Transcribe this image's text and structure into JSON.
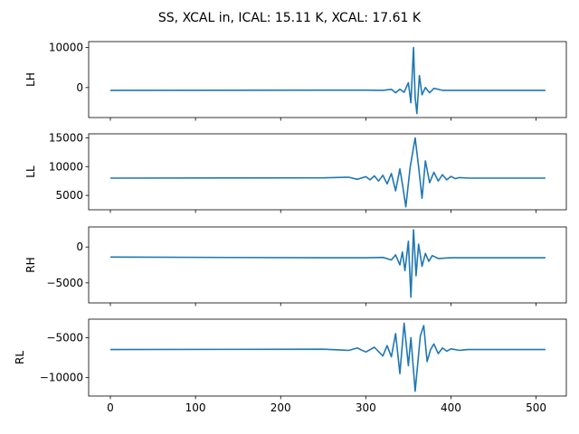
{
  "figure": {
    "title": "SS, XCAL in, ICAL: 15.11 K, XCAL: 17.61 K",
    "line_color": "#1f77b4"
  },
  "chart_data": [
    {
      "type": "line",
      "ylabel": "LH",
      "xlim": [
        -25.5,
        535.5
      ],
      "ylim": [
        -7500,
        11500
      ],
      "yticks": [
        0,
        10000
      ],
      "ytick_labels": [
        "0",
        "10000"
      ],
      "xticks": [
        0,
        100,
        200,
        300,
        400,
        500
      ],
      "xtick_labels": [],
      "baseline": -700,
      "x": [
        0,
        250,
        300,
        320,
        330,
        335,
        340,
        345,
        350,
        353,
        356,
        358,
        360,
        363,
        366,
        370,
        375,
        380,
        390,
        400,
        420,
        511
      ],
      "y": [
        -700,
        -650,
        -650,
        -700,
        -450,
        -1300,
        -400,
        -1200,
        1200,
        -3800,
        10000,
        -2500,
        -6500,
        3000,
        -1800,
        0,
        -1300,
        -200,
        -700,
        -700,
        -700,
        -700
      ]
    },
    {
      "type": "line",
      "ylabel": "LL",
      "xlim": [
        -25.5,
        535.5
      ],
      "ylim": [
        2500,
        15700
      ],
      "yticks": [
        5000,
        10000,
        15000
      ],
      "ytick_labels": [
        "5000",
        "10000",
        "15000"
      ],
      "xticks": [
        0,
        100,
        200,
        300,
        400,
        500
      ],
      "xtick_labels": [],
      "baseline": 8000,
      "x": [
        0,
        250,
        280,
        290,
        300,
        305,
        310,
        315,
        320,
        325,
        330,
        335,
        340,
        343,
        347,
        352,
        358,
        362,
        366,
        370,
        375,
        380,
        385,
        390,
        395,
        400,
        405,
        410,
        420,
        511
      ],
      "y": [
        8000,
        8050,
        8150,
        7800,
        8250,
        7700,
        8400,
        7500,
        8500,
        7000,
        8800,
        5800,
        9600,
        7000,
        3000,
        9800,
        15000,
        10000,
        4500,
        11000,
        7200,
        9000,
        7500,
        8600,
        7700,
        8300,
        7900,
        8100,
        8000,
        8000
      ]
    },
    {
      "type": "line",
      "ylabel": "RH",
      "xlim": [
        -25.5,
        535.5
      ],
      "ylim": [
        -7800,
        2800
      ],
      "yticks": [
        -5000,
        0
      ],
      "ytick_labels": [
        "−5000",
        "0"
      ],
      "xticks": [
        0,
        100,
        200,
        300,
        400,
        500
      ],
      "xtick_labels": [],
      "baseline": -1500,
      "x": [
        0,
        250,
        300,
        320,
        330,
        335,
        340,
        343,
        346,
        350,
        353,
        356,
        359,
        362,
        366,
        370,
        374,
        378,
        385,
        400,
        511
      ],
      "y": [
        -1400,
        -1500,
        -1500,
        -1450,
        -1800,
        -1100,
        -2500,
        -700,
        -3300,
        800,
        -7000,
        2400,
        -4000,
        400,
        -2700,
        -900,
        -2000,
        -1200,
        -1600,
        -1500,
        -1500
      ]
    },
    {
      "type": "line",
      "ylabel": "RL",
      "xlim": [
        -25.5,
        535.5
      ],
      "ylim": [
        -12300,
        -2700
      ],
      "yticks": [
        -10000,
        -5000
      ],
      "ytick_labels": [
        "−10000",
        "−5000"
      ],
      "xticks": [
        0,
        100,
        200,
        300,
        400,
        500
      ],
      "xtick_labels": [
        "0",
        "100",
        "200",
        "300",
        "400",
        "500"
      ],
      "baseline": -6500,
      "x": [
        0,
        250,
        280,
        290,
        300,
        310,
        320,
        325,
        330,
        335,
        340,
        345,
        350,
        353,
        358,
        364,
        368,
        372,
        376,
        380,
        385,
        390,
        395,
        400,
        410,
        420,
        511
      ],
      "y": [
        -6500,
        -6450,
        -6600,
        -6300,
        -6800,
        -6200,
        -7300,
        -6000,
        -7400,
        -4500,
        -9500,
        -3200,
        -8500,
        -5000,
        -11700,
        -4800,
        -3500,
        -8000,
        -6500,
        -5800,
        -7000,
        -6300,
        -6700,
        -6400,
        -6600,
        -6500,
        -6500
      ]
    }
  ]
}
